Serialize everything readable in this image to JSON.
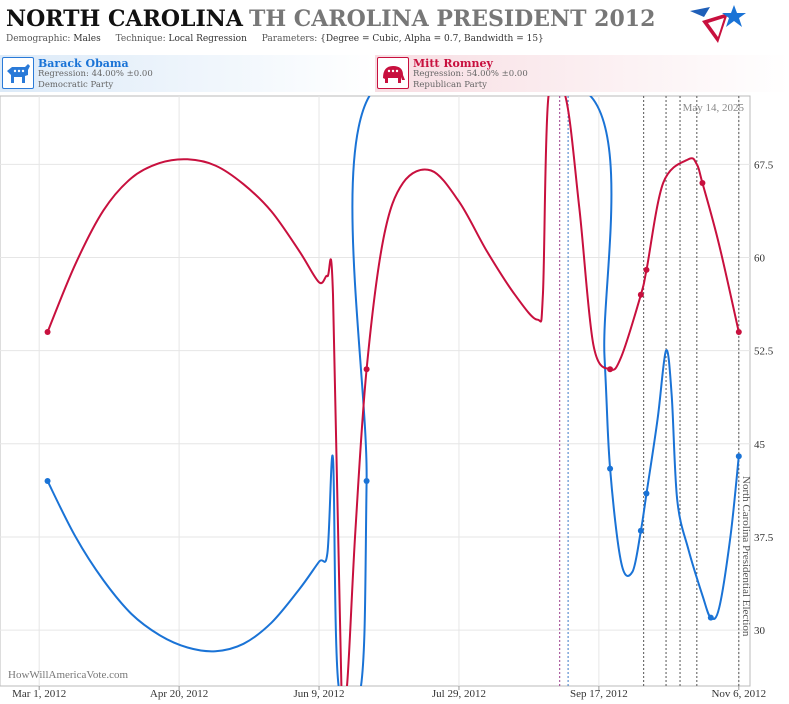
{
  "header": {
    "state": "NORTH CAROLINA",
    "race": "TH CAROLINA PRESIDENT 2012",
    "demographic_label": "Demographic:",
    "demographic": "Males",
    "technique_label": "Technique:",
    "technique": "Local Regression",
    "parameters_label": "Parameters:",
    "parameters": "{Degree = Cubic, Alpha = 0.7, Bandwidth = 15}"
  },
  "candidates": {
    "dem": {
      "name": "Barack Obama",
      "regression": "Regression: 44.00% ±0.00",
      "party": "Democratic Party",
      "color": "#1a73d6"
    },
    "rep": {
      "name": "Mitt Romney",
      "regression": "Regression: 54.00% ±0.00",
      "party": "Republican Party",
      "color": "#c8103e"
    }
  },
  "footer": {
    "watermark": "HowWillAmericaVote.com",
    "date_stamp": "May 14, 2025"
  },
  "chart_data": {
    "type": "line",
    "x_type": "date",
    "x_ticks": [
      "2012-03-01",
      "2012-04-20",
      "2012-06-09",
      "2012-07-29",
      "2012-09-17",
      "2012-11-06"
    ],
    "x_tick_labels": [
      "Mar 1, 2012",
      "Apr 20, 2012",
      "Jun 9, 2012",
      "Jul 29, 2012",
      "Sep 17, 2012",
      "Nov 6, 2012"
    ],
    "xlim": [
      "2012-02-16",
      "2012-11-10"
    ],
    "ylim": [
      25.5,
      73
    ],
    "y_ticks": [
      30,
      37.5,
      45,
      52.5,
      60,
      67.5
    ],
    "y_axis_side": "right",
    "grid": true,
    "vlines": [
      {
        "date": "2012-09-03",
        "color": "#9b3c8c"
      },
      {
        "date": "2012-09-06",
        "color": "#3c7ac8"
      },
      {
        "date": "2012-10-03",
        "color": "#555555"
      },
      {
        "date": "2012-10-11",
        "color": "#555555"
      },
      {
        "date": "2012-10-16",
        "color": "#555555"
      },
      {
        "date": "2012-10-22",
        "color": "#555555"
      },
      {
        "date": "2012-11-06",
        "color": "#555555",
        "label": "North Carolina Presidential Election"
      }
    ],
    "series": [
      {
        "name": "Barack Obama",
        "color": "#1a73d6",
        "curve": [
          [
            "2012-03-04",
            42
          ],
          [
            "2012-03-14",
            37.5
          ],
          [
            "2012-03-24",
            34
          ],
          [
            "2012-04-03",
            31.3
          ],
          [
            "2012-04-13",
            29.6
          ],
          [
            "2012-04-23",
            28.6
          ],
          [
            "2012-05-03",
            28.3
          ],
          [
            "2012-05-13",
            28.9
          ],
          [
            "2012-05-23",
            30.6
          ],
          [
            "2012-06-02",
            33.3
          ],
          [
            "2012-06-09",
            35.5
          ],
          [
            "2012-06-12",
            36.2
          ],
          [
            "2012-06-14",
            43.8
          ],
          [
            "2012-06-16",
            25.5
          ],
          [
            "2012-06-24",
            25.5
          ],
          [
            "2012-06-26",
            42
          ],
          [
            "2012-06-27",
            73
          ],
          [
            "2012-09-14",
            73
          ],
          [
            "2012-09-19",
            52
          ],
          [
            "2012-09-21",
            43
          ],
          [
            "2012-09-25",
            35.4
          ],
          [
            "2012-09-29",
            34.7
          ],
          [
            "2012-10-02",
            38
          ],
          [
            "2012-10-04",
            41
          ],
          [
            "2012-10-08",
            47
          ],
          [
            "2012-10-11",
            52.5
          ],
          [
            "2012-10-13",
            49
          ],
          [
            "2012-10-15",
            40.5
          ],
          [
            "2012-10-19",
            36.5
          ],
          [
            "2012-10-24",
            32.8
          ],
          [
            "2012-10-27",
            31
          ],
          [
            "2012-10-30",
            31.8
          ],
          [
            "2012-11-03",
            37.5
          ],
          [
            "2012-11-06",
            44
          ]
        ],
        "points": [
          [
            "2012-03-04",
            42
          ],
          [
            "2012-06-26",
            42
          ],
          [
            "2012-09-21",
            43
          ],
          [
            "2012-10-02",
            38
          ],
          [
            "2012-10-04",
            41
          ],
          [
            "2012-10-27",
            31
          ],
          [
            "2012-11-06",
            44
          ]
        ]
      },
      {
        "name": "Mitt Romney",
        "color": "#c8103e",
        "curve": [
          [
            "2012-03-04",
            54
          ],
          [
            "2012-03-14",
            59.5
          ],
          [
            "2012-03-24",
            63.8
          ],
          [
            "2012-04-03",
            66.4
          ],
          [
            "2012-04-13",
            67.6
          ],
          [
            "2012-04-23",
            67.9
          ],
          [
            "2012-05-03",
            67.4
          ],
          [
            "2012-05-13",
            65.9
          ],
          [
            "2012-05-23",
            63.7
          ],
          [
            "2012-06-02",
            60.5
          ],
          [
            "2012-06-09",
            58
          ],
          [
            "2012-06-12",
            58.5
          ],
          [
            "2012-06-14",
            57
          ],
          [
            "2012-06-17",
            25.5
          ],
          [
            "2012-06-19",
            25.5
          ],
          [
            "2012-06-22",
            38
          ],
          [
            "2012-06-26",
            51
          ],
          [
            "2012-07-02",
            61.5
          ],
          [
            "2012-07-09",
            66
          ],
          [
            "2012-07-19",
            67
          ],
          [
            "2012-07-29",
            64.5
          ],
          [
            "2012-08-08",
            60.5
          ],
          [
            "2012-08-18",
            57
          ],
          [
            "2012-08-26",
            55
          ],
          [
            "2012-08-28",
            57
          ],
          [
            "2012-08-30",
            73
          ],
          [
            "2012-09-05",
            73
          ],
          [
            "2012-09-10",
            64
          ],
          [
            "2012-09-15",
            53
          ],
          [
            "2012-09-21",
            51
          ],
          [
            "2012-09-25",
            52
          ],
          [
            "2012-10-02",
            57
          ],
          [
            "2012-10-04",
            59
          ],
          [
            "2012-10-10",
            66
          ],
          [
            "2012-10-19",
            67.9
          ],
          [
            "2012-10-22",
            67.5
          ],
          [
            "2012-10-24",
            66
          ],
          [
            "2012-10-30",
            61
          ],
          [
            "2012-11-06",
            54
          ]
        ],
        "points": [
          [
            "2012-03-04",
            54
          ],
          [
            "2012-06-26",
            51
          ],
          [
            "2012-09-21",
            51
          ],
          [
            "2012-10-02",
            57
          ],
          [
            "2012-10-04",
            59
          ],
          [
            "2012-10-24",
            66
          ],
          [
            "2012-11-06",
            54
          ]
        ]
      }
    ]
  }
}
